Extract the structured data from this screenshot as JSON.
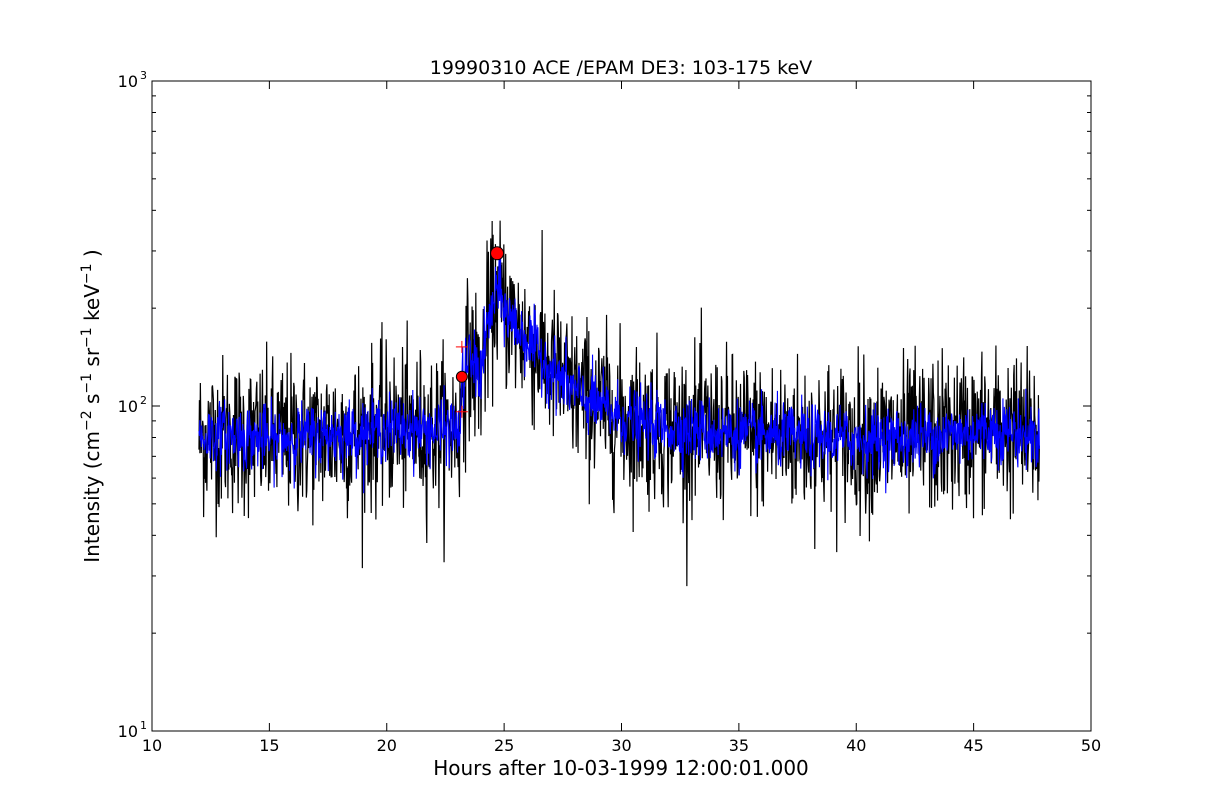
{
  "chart_data": {
    "type": "line",
    "title": "19990310 ACE /EPAM DE3: 103-175 keV",
    "xlabel": "Hours after 10-03-1999 12:00:01.000",
    "ylabel_parts": [
      "Intensity (cm",
      "−2",
      " s",
      "−1",
      " sr",
      "−1",
      " keV",
      "−1",
      " )"
    ],
    "xlim": [
      10,
      50
    ],
    "ylim": [
      10,
      1000
    ],
    "yscale": "log",
    "grid": false,
    "x_ticks": [
      10,
      15,
      20,
      25,
      30,
      35,
      40,
      45,
      50
    ],
    "x_tick_labels": [
      "10",
      "15",
      "20",
      "25",
      "30",
      "35",
      "40",
      "45",
      "50"
    ],
    "y_ticks": [
      10,
      100,
      1000
    ],
    "y_tick_labels": [
      {
        "base": "10",
        "exp": "1"
      },
      {
        "base": "10",
        "exp": "2"
      },
      {
        "base": "10",
        "exp": "3"
      }
    ],
    "series": [
      {
        "color": "#000000",
        "description_points": {
          "x": [
            12.0,
            13,
            14,
            15,
            16,
            17,
            18,
            19,
            20,
            21,
            22,
            23.15,
            23.2,
            23.5,
            24.0,
            24.3,
            24.7,
            25.0,
            25.5,
            26,
            27,
            28,
            29,
            30,
            31,
            32,
            34,
            36,
            38,
            40,
            42,
            44,
            46,
            47.8
          ],
          "y": [
            80,
            82,
            80,
            79,
            80,
            81,
            82,
            83,
            86,
            85,
            84,
            85,
            118,
            140,
            125,
            175,
            230,
            200,
            175,
            160,
            130,
            110,
            100,
            92,
            88,
            86,
            83,
            81,
            80,
            79,
            79,
            82,
            85,
            80
          ]
        },
        "noise_amplitude_log10": 0.12
      },
      {
        "color": "#0000ff",
        "description_points": {
          "x": [
            12.0,
            13,
            14,
            15,
            16,
            17,
            18,
            19,
            20,
            21,
            22,
            23.15,
            23.2,
            23.5,
            24.0,
            24.3,
            24.7,
            25.0,
            25.5,
            26,
            27,
            28,
            29,
            30,
            31,
            32,
            34,
            36,
            38,
            40,
            42,
            44,
            46,
            47.8
          ],
          "y": [
            80,
            82,
            80,
            79,
            80,
            81,
            82,
            83,
            86,
            85,
            84,
            85,
            118,
            140,
            125,
            175,
            230,
            200,
            175,
            160,
            130,
            110,
            100,
            92,
            88,
            86,
            83,
            81,
            80,
            79,
            79,
            82,
            85,
            80
          ]
        },
        "noise_amplitude_log10": 0.05
      }
    ],
    "markers": {
      "circles": [
        {
          "x": 23.2,
          "y": 123,
          "color": "#ff0000"
        },
        {
          "x": 24.7,
          "y": 295,
          "color": "#ff0000"
        }
      ],
      "plus": [
        {
          "x": 23.2,
          "y": 152,
          "color": "#ff0000"
        },
        {
          "x": 23.2,
          "y": 96,
          "color": "#ff0000"
        }
      ]
    }
  }
}
